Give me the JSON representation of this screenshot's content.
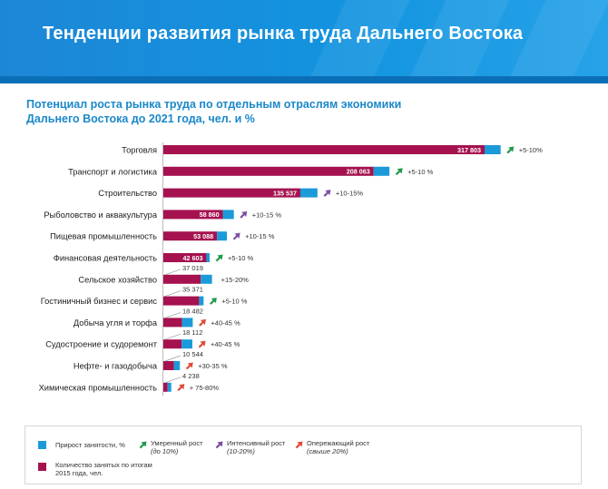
{
  "header": {
    "title": "Тенденции развития рынка труда Дальнего Востока"
  },
  "chart_data": {
    "type": "bar",
    "orientation": "horizontal",
    "stacked": true,
    "title": "Потенциал роста рынка труда по отдельным отраслям экономики Дальнего Востока до 2021 года, чел. и %",
    "xlim": [
      0,
      360000
    ],
    "categories": [
      "Торговля",
      "Транспорт и логистика",
      "Строительство",
      "Рыболовство и аквакультура",
      "Пищевая промышленность",
      "Финансовая деятельность",
      "Сельское хозяйство",
      "Гостиничный бизнес и сервис",
      "Добыча угля и торфа",
      "Судостроение и судоремонт",
      "Нефте- и газодобыча",
      "Химическая промышленность"
    ],
    "series": [
      {
        "name": "Количество занятых по итогам 2015 года, чел.",
        "color": "#a5124f",
        "values": [
          317803,
          208063,
          135537,
          58860,
          53088,
          42603,
          37019,
          35371,
          18482,
          18112,
          10544,
          4238
        ],
        "labels": [
          "317 803",
          "208 063",
          "135 537",
          "58 860",
          "53 088",
          "42 603",
          "37 019",
          "35 371",
          "18 482",
          "18 112",
          "10 544",
          "4 238"
        ]
      },
      {
        "name": "Прирост занятости, %",
        "color": "#1a9ad9",
        "values": [
          15890,
          15600,
          16940,
          10890,
          9820,
          3200,
          11100,
          4420,
          10600,
          10600,
          5800,
          3600
        ],
        "labels": [
          "+5-10%",
          "+5-10 %",
          "+10-15%",
          "+10-15 %",
          "+10-15 %",
          "+5-10 %",
          "+15-20%",
          "+5-10 %",
          "+40-45 %",
          "+40-45 %",
          "+30-35 %",
          "+ 75-80%"
        ]
      }
    ],
    "growth_type": [
      "moderate",
      "moderate",
      "intensive",
      "intensive",
      "intensive",
      "moderate",
      "none",
      "moderate",
      "outpacing",
      "outpacing",
      "outpacing",
      "outpacing"
    ],
    "value_label_position": [
      "inside",
      "inside",
      "inside",
      "inside",
      "inside",
      "inside",
      "above",
      "above",
      "above",
      "above",
      "above",
      "above"
    ]
  },
  "legend": {
    "growth": {
      "label": "Прирост занятости, %",
      "color": "#1a9ad9"
    },
    "employed": {
      "label": "Количество занятых по итогам 2015 года, чел.",
      "color": "#a5124f"
    },
    "moderate": {
      "label": "Умеренный рост",
      "sub": "(до 10%)",
      "color": "#1e9a4c"
    },
    "intensive": {
      "label": "Интенсивный рост",
      "sub": "(10-20%)",
      "color": "#7d4fa0"
    },
    "outpacing": {
      "label": "Опережающий рост",
      "sub": "(свыше 20%)",
      "color": "#e04b37"
    }
  }
}
